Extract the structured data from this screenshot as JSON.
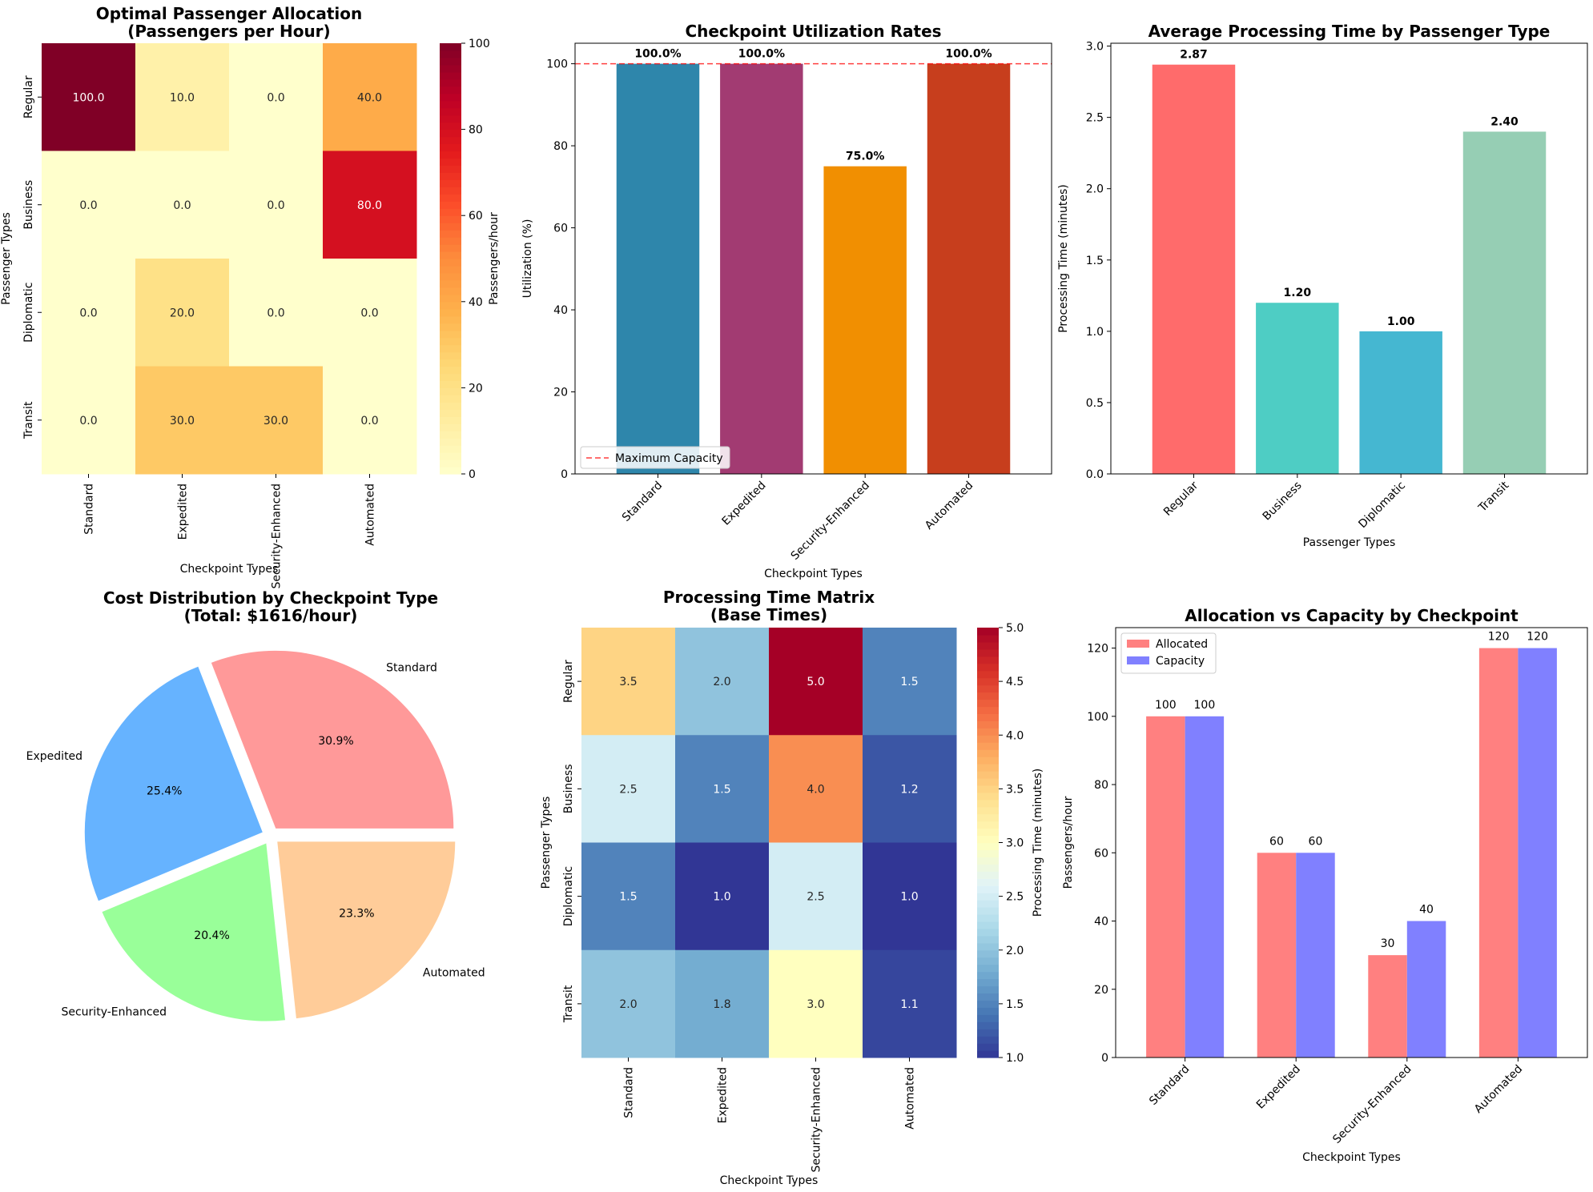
{
  "chart_data": [
    {
      "id": "allocation",
      "type": "heatmap",
      "title": "Optimal Passenger Allocation\n(Passengers per Hour)",
      "xlabel": "Checkpoint Types",
      "ylabel": "Passenger Types",
      "colorbar_label": "Passengers/hour",
      "colormap": "YlOrRd",
      "vmin": 0,
      "vmax": 100,
      "colorbar_ticks": [
        0,
        20,
        40,
        60,
        80,
        100
      ],
      "rows": [
        "Regular",
        "Business",
        "Diplomatic",
        "Transit"
      ],
      "cols": [
        "Standard",
        "Expedited",
        "Security-Enhanced",
        "Automated"
      ],
      "values": [
        [
          100,
          10,
          0,
          40
        ],
        [
          0,
          0,
          0,
          80
        ],
        [
          0,
          20,
          0,
          0
        ],
        [
          0,
          30,
          30,
          0
        ]
      ],
      "format_decimals": 1
    },
    {
      "id": "utilization",
      "type": "bar",
      "title": "Checkpoint Utilization Rates",
      "xlabel": "Checkpoint Types",
      "ylabel": "Utilization (%)",
      "categories": [
        "Standard",
        "Expedited",
        "Security-Enhanced",
        "Automated"
      ],
      "values": [
        100,
        100,
        75,
        100
      ],
      "value_labels": [
        "100.0%",
        "100.0%",
        "75.0%",
        "100.0%"
      ],
      "colors": [
        "#2e86ab",
        "#a23b72",
        "#f18f01",
        "#c73e1d"
      ],
      "ylim": [
        0,
        105
      ],
      "yticks": [
        0,
        20,
        40,
        60,
        80,
        100
      ],
      "reference_line": {
        "value": 100,
        "label": "Maximum Capacity",
        "color": "#ff0000"
      },
      "legend_position": "lower-left"
    },
    {
      "id": "processing_avg",
      "type": "bar",
      "title": "Average Processing Time by Passenger Type",
      "xlabel": "Passenger Types",
      "ylabel": "Processing Time (minutes)",
      "categories": [
        "Regular",
        "Business",
        "Diplomatic",
        "Transit"
      ],
      "values": [
        2.87,
        1.2,
        1.0,
        2.4
      ],
      "value_labels": [
        "2.87",
        "1.20",
        "1.00",
        "2.40"
      ],
      "colors": [
        "#ff6b6b",
        "#4ecdc4",
        "#45b7d1",
        "#96ceb4"
      ],
      "ylim": [
        0,
        3.02
      ],
      "yticks": [
        0.0,
        0.5,
        1.0,
        1.5,
        2.0,
        2.5,
        3.0
      ]
    },
    {
      "id": "cost",
      "type": "pie",
      "title": "Cost Distribution by Checkpoint Type\n(Total: $1616/hour)",
      "labels": [
        "Standard",
        "Expedited",
        "Security-Enhanced",
        "Automated"
      ],
      "values": [
        30.9,
        25.4,
        20.4,
        23.3
      ],
      "pct_labels": [
        "30.9%",
        "25.4%",
        "20.4%",
        "23.3%"
      ],
      "colors": [
        "#ff9999",
        "#66b3ff",
        "#99ff99",
        "#ffcc99"
      ],
      "start_angle": 0,
      "explode": 0.05
    },
    {
      "id": "processing_matrix",
      "type": "heatmap",
      "title": "Processing Time Matrix\n(Base Times)",
      "xlabel": "Checkpoint Types",
      "ylabel": "Passenger Types",
      "colorbar_label": "Processing Time (minutes)",
      "colormap": "RdYlBu_r",
      "vmin": 1.0,
      "vmax": 5.0,
      "colorbar_ticks": [
        1.0,
        1.5,
        2.0,
        2.5,
        3.0,
        3.5,
        4.0,
        4.5,
        5.0
      ],
      "rows": [
        "Regular",
        "Business",
        "Diplomatic",
        "Transit"
      ],
      "cols": [
        "Standard",
        "Expedited",
        "Security-Enhanced",
        "Automated"
      ],
      "values": [
        [
          3.5,
          2.0,
          5.0,
          1.5
        ],
        [
          2.5,
          1.5,
          4.0,
          1.2
        ],
        [
          1.5,
          1.0,
          2.5,
          1.0
        ],
        [
          2.0,
          1.8,
          3.0,
          1.1
        ]
      ],
      "format_decimals": 1
    },
    {
      "id": "alloc_capacity",
      "type": "bar",
      "title": "Allocation vs Capacity by Checkpoint",
      "xlabel": "Checkpoint Types",
      "ylabel": "Passengers/hour",
      "categories": [
        "Standard",
        "Expedited",
        "Security-Enhanced",
        "Automated"
      ],
      "series": [
        {
          "name": "Allocated",
          "values": [
            100,
            60,
            30,
            120
          ],
          "color": "#ff8080"
        },
        {
          "name": "Capacity",
          "values": [
            100,
            60,
            40,
            120
          ],
          "color": "#8080ff"
        }
      ],
      "ylim": [
        0,
        126
      ],
      "yticks": [
        0,
        20,
        40,
        60,
        80,
        100,
        120
      ],
      "legend_position": "top-left"
    }
  ]
}
